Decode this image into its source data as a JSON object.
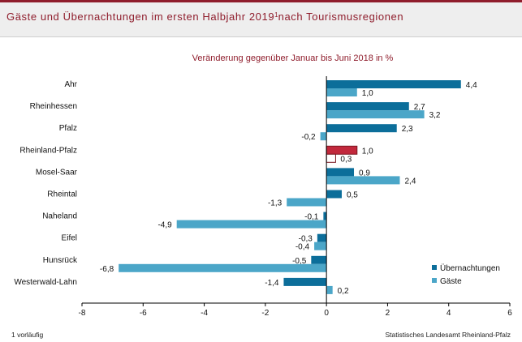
{
  "header": {
    "title": "Gäste und Übernachtungen im ersten Halbjahr 2019",
    "title_sup": "1",
    "title_suffix": "nach Tourismusregionen"
  },
  "footer": {
    "footnote": "1 vorläufig",
    "source": "Statistisches Landesamt Rheinland-Pfalz"
  },
  "chart_data": {
    "type": "bar",
    "orientation": "horizontal",
    "title": "Veränderung gegenüber Januar bis Juni 2018 in %",
    "categories": [
      "Ahr",
      "Rheinhessen",
      "Pfalz",
      "Rheinland-Pfalz",
      "Mosel-Saar",
      "Rheintal",
      "Naheland",
      "Eifel",
      "Hunsrück",
      "Westerwald-Lahn"
    ],
    "series": [
      {
        "name": "Übernachtungen",
        "color": "#0c6e9a",
        "values": [
          4.4,
          2.7,
          2.3,
          1.0,
          0.9,
          0.5,
          -0.1,
          -0.3,
          -0.5,
          -1.4
        ]
      },
      {
        "name": "Gäste",
        "color": "#4ba6c8",
        "values": [
          1.0,
          3.2,
          -0.2,
          0.3,
          2.4,
          -1.3,
          -4.9,
          -0.4,
          -6.8,
          0.2
        ]
      }
    ],
    "highlight": {
      "category": "Rheinland-Pfalz",
      "fill": "#c2283c",
      "stroke": "#7a1620"
    },
    "xlim": [
      -8,
      6
    ],
    "xticks": [
      -8,
      -6,
      -4,
      -2,
      0,
      2,
      4,
      6
    ],
    "legend": "right"
  }
}
